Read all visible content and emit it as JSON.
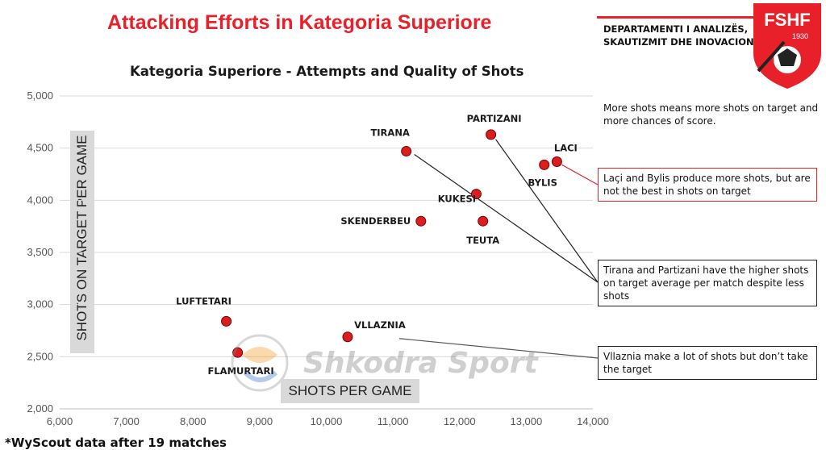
{
  "header": {
    "main_title": "Attacking Efforts in Kategoria Superiore",
    "dept_line1": "DEPARTAMENTI I ANALIZËS,",
    "dept_line2": "SKAUTIZMIT DHE INOVACIONIT",
    "logo_text": "FSHF",
    "logo_year": "1930"
  },
  "watermark": {
    "text": "Shkodra Sport"
  },
  "footnote": "*WyScout data after 19 matches",
  "colors": {
    "accent_red": "#e8202a",
    "point_fill": "#d81e1e",
    "grid": "#d9d9d9",
    "axis_label_box": "#d9d9d9"
  },
  "notes": {
    "general": "More shots means more shots on target and more chances of score.",
    "laci_bylis": "Laçi and Bylis produce more shots, but are not the best in shots on target",
    "tirana_partizani": "Tirana and Partizani have the higher shots on target average per match despite less shots",
    "vllaznia": "Vllaznia make a lot of shots but don’t take the target"
  },
  "chart_data": {
    "type": "scatter",
    "title": "Kategoria Superiore - Attempts and Quality of Shots",
    "xlabel": "SHOTS PER GAME",
    "ylabel": "SHOTS ON TARGET PER GAME",
    "xlim": [
      6000,
      14000
    ],
    "ylim": [
      2000,
      5000
    ],
    "xticks": [
      6000,
      7000,
      8000,
      9000,
      10000,
      11000,
      12000,
      13000,
      14000
    ],
    "yticks": [
      2000,
      2500,
      3000,
      3500,
      4000,
      4500,
      5000
    ],
    "xtick_labels": [
      "6,000",
      "7,000",
      "8,000",
      "9,000",
      "10,000",
      "11,000",
      "12,000",
      "13,000",
      "14,000"
    ],
    "ytick_labels": [
      "2,000",
      "2,500",
      "3,000",
      "3,500",
      "4,000",
      "4,500",
      "5,000"
    ],
    "grid": "horizontal",
    "points": [
      {
        "label": "PARTIZANI",
        "x": 12470,
        "y": 4630
      },
      {
        "label": "TIRANA",
        "x": 11200,
        "y": 4470
      },
      {
        "label": "LACI",
        "x": 13460,
        "y": 4370
      },
      {
        "label": "BYLIS",
        "x": 13270,
        "y": 4340
      },
      {
        "label": "KUKESI",
        "x": 12250,
        "y": 4060
      },
      {
        "label": "SKENDERBEU",
        "x": 11420,
        "y": 3800
      },
      {
        "label": "TEUTA",
        "x": 12350,
        "y": 3800
      },
      {
        "label": "LUFTETARI",
        "x": 8500,
        "y": 2840
      },
      {
        "label": "VLLAZNIA",
        "x": 10320,
        "y": 2690
      },
      {
        "label": "FLAMURTARI",
        "x": 8670,
        "y": 2540
      }
    ]
  }
}
